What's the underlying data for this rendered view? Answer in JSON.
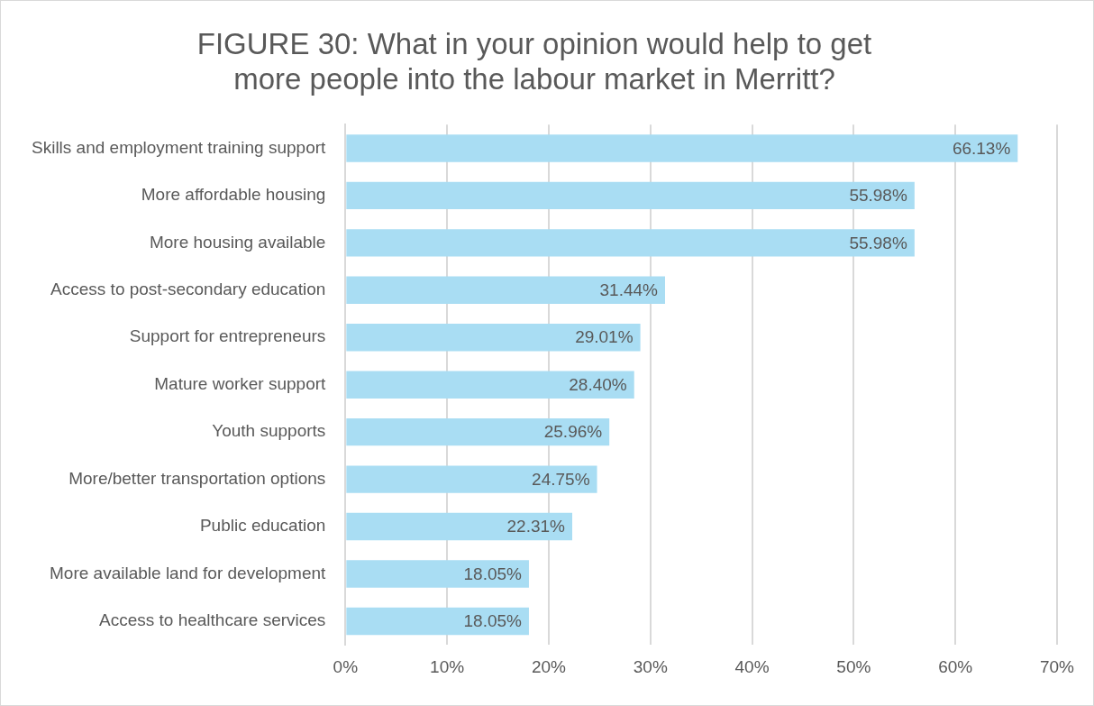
{
  "chart_data": {
    "type": "bar",
    "orientation": "horizontal",
    "title": "FIGURE 30: What in your opinion would help to get more people into the labour market in Merritt?",
    "categories": [
      "Skills and employment training support",
      "More affordable housing",
      "More housing available",
      "Access to post-secondary education",
      "Support for entrepreneurs",
      "Mature worker support",
      "Youth supports",
      "More/better transportation options",
      "Public education",
      "More available land for development",
      "Access to healthcare services"
    ],
    "values": [
      66.13,
      55.98,
      55.98,
      31.44,
      29.01,
      28.4,
      25.96,
      24.75,
      22.31,
      18.05,
      18.05
    ],
    "value_labels": [
      "66.13%",
      "55.98%",
      "55.98%",
      "31.44%",
      "29.01%",
      "28.40%",
      "25.96%",
      "24.75%",
      "22.31%",
      "18.05%",
      "18.05%"
    ],
    "color": "#a9ddf3",
    "xlim": [
      0,
      70
    ],
    "xticks": [
      {
        "value": 0,
        "label": "0%"
      },
      {
        "value": 10,
        "label": "10%"
      },
      {
        "value": 20,
        "label": "20%"
      },
      {
        "value": 30,
        "label": "30%"
      },
      {
        "value": 40,
        "label": "40%"
      },
      {
        "value": 50,
        "label": "50%"
      },
      {
        "value": 60,
        "label": "60%"
      },
      {
        "value": 70,
        "label": "70%"
      }
    ],
    "grid": "x",
    "legend": false
  }
}
